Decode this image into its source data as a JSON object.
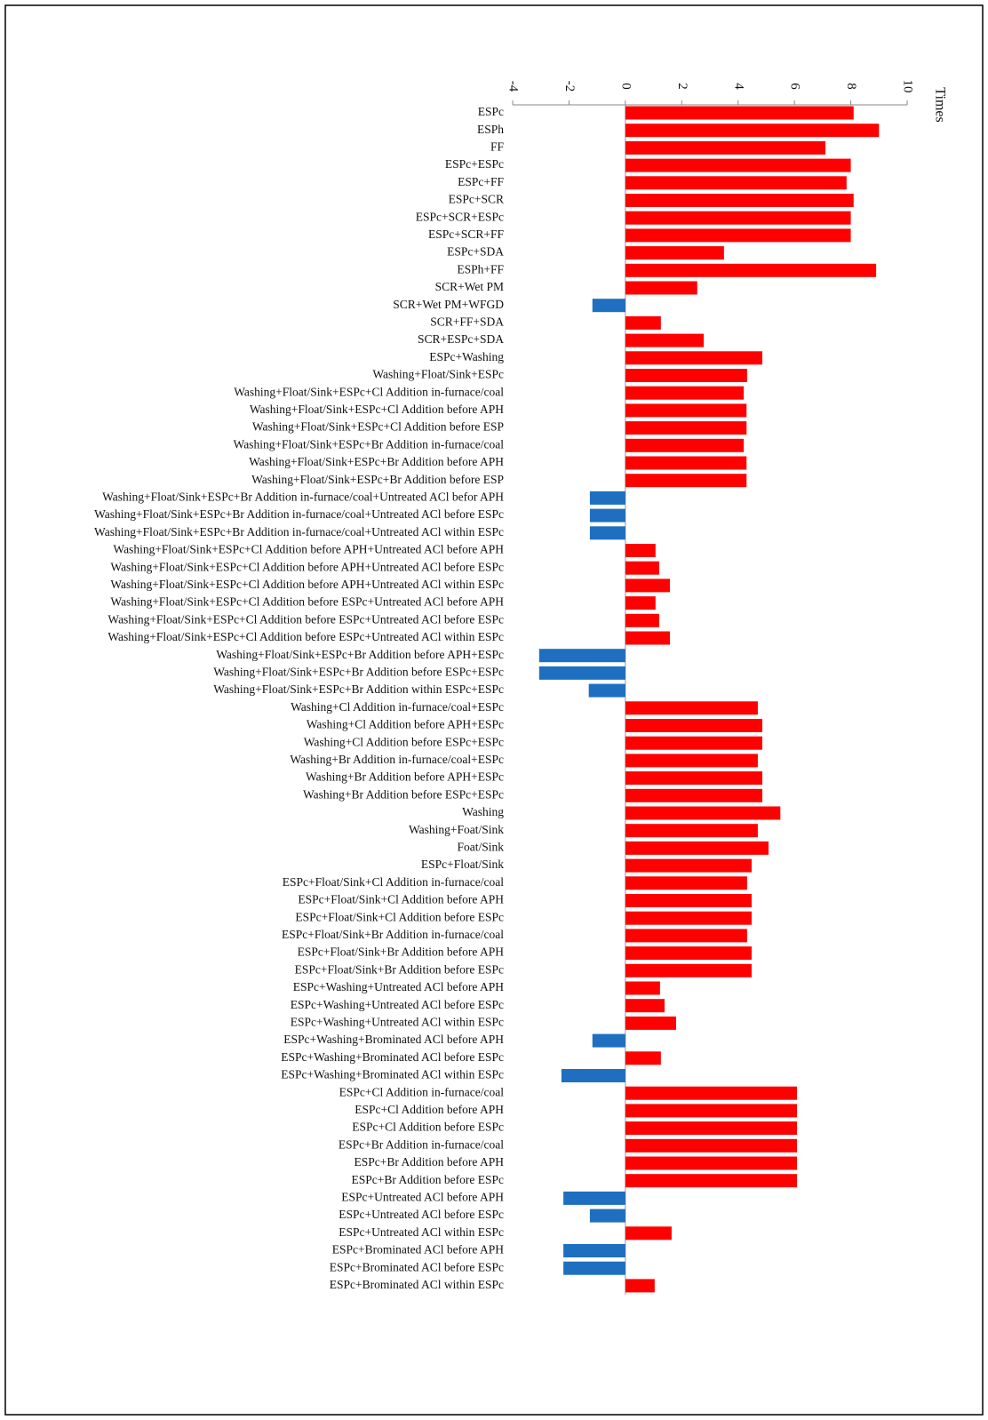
{
  "chart_data": {
    "type": "hbar",
    "x_label": "Times",
    "xlim": [
      -4,
      10
    ],
    "xticks": [
      -4,
      -2,
      0,
      2,
      4,
      6,
      8,
      10
    ],
    "color_positive": "#ff0000",
    "color_negative": "#1f6fc0",
    "categories": [
      "ESPc",
      "ESPh",
      "FF",
      "ESPc+ESPc",
      "ESPc+FF",
      "ESPc+SCR",
      "ESPc+SCR+ESPc",
      "ESPc+SCR+FF",
      "ESPc+SDA",
      "ESPh+FF",
      "SCR+Wet PM",
      "SCR+Wet PM+WFGD",
      "SCR+FF+SDA",
      "SCR+ESPc+SDA",
      "ESPc+Washing",
      "Washing+Float/Sink+ESPc",
      "Washing+Float/Sink+ESPc+Cl Addition in-furnace/coal",
      "Washing+Float/Sink+ESPc+Cl Addition before APH",
      "Washing+Float/Sink+ESPc+Cl Addition before ESP",
      "Washing+Float/Sink+ESPc+Br Addition in-furnace/coal",
      "Washing+Float/Sink+ESPc+Br Addition before APH",
      "Washing+Float/Sink+ESPc+Br Addition before ESP",
      "Washing+Float/Sink+ESPc+Br Addition in-furnace/coal+Untreated ACl befor APH",
      "Washing+Float/Sink+ESPc+Br Addition in-furnace/coal+Untreated ACl before ESPc",
      "Washing+Float/Sink+ESPc+Br Addition in-furnace/coal+Untreated ACl within ESPc",
      "Washing+Float/Sink+ESPc+Cl Addition before APH+Untreated ACl before APH",
      "Washing+Float/Sink+ESPc+Cl Addition before APH+Untreated ACl before ESPc",
      "Washing+Float/Sink+ESPc+Cl Addition before APH+Untreated ACl within ESPc",
      "Washing+Float/Sink+ESPc+Cl Addition before ESPc+Untreated ACl before APH",
      "Washing+Float/Sink+ESPc+Cl Addition before ESPc+Untreated ACl before ESPc",
      "Washing+Float/Sink+ESPc+Cl Addition before ESPc+Untreated ACl within ESPc",
      "Washing+Float/Sink+ESPc+Br Addition before APH+ESPc",
      "Washing+Float/Sink+ESPc+Br Addition before ESPc+ESPc",
      "Washing+Float/Sink+ESPc+Br Addition within ESPc+ESPc",
      "Washing+Cl Addition in-furnace/coal+ESPc",
      "Washing+Cl Addition before APH+ESPc",
      "Washing+Cl Addition before ESPc+ESPc",
      "Washing+Br Addition in-furnace/coal+ESPc",
      "Washing+Br Addition before APH+ESPc",
      "Washing+Br Addition before ESPc+ESPc",
      "Washing",
      "Washing+Foat/Sink",
      "Foat/Sink",
      "ESPc+Float/Sink",
      "ESPc+Float/Sink+Cl Addition in-furnace/coal",
      "ESPc+Float/Sink+Cl Addition before APH",
      "ESPc+Float/Sink+Cl Addition before ESPc",
      "ESPc+Float/Sink+Br Addition in-furnace/coal",
      "ESPc+Float/Sink+Br Addition before APH",
      "ESPc+Float/Sink+Br Addition before ESPc",
      "ESPc+Washing+Untreated ACl before APH",
      "ESPc+Washing+Untreated ACl before ESPc",
      "ESPc+Washing+Untreated ACl within ESPc",
      "ESPc+Washing+Brominated ACl before APH",
      "ESPc+Washing+Brominated ACl before ESPc",
      "ESPc+Washing+Brominated ACl within ESPc",
      "ESPc+Cl Addition in-furnace/coal",
      "ESPc+Cl Addition before APH",
      "ESPc+Cl Addition before ESPc",
      "ESPc+Br Addition in-furnace/coal",
      "ESPc+Br Addition before APH",
      "ESPc+Br Addition before ESPc",
      "ESPc+Untreated ACl before APH",
      "ESPc+Untreated ACl before ESPc",
      "ESPc+Untreated ACl within ESPc",
      "ESPc+Brominated ACl before APH",
      "ESPc+Brominated ACl before ESPc",
      "ESPc+Brominated ACl within ESPc"
    ],
    "values": [
      8.1,
      9.0,
      7.1,
      8.0,
      7.85,
      8.1,
      8.0,
      8.0,
      3.5,
      8.9,
      2.55,
      -1.17,
      1.26,
      2.78,
      4.86,
      4.32,
      4.2,
      4.3,
      4.3,
      4.2,
      4.3,
      4.3,
      -1.26,
      -1.26,
      -1.26,
      1.07,
      1.2,
      1.58,
      1.07,
      1.2,
      1.58,
      -3.06,
      -3.06,
      -1.3,
      4.7,
      4.86,
      4.86,
      4.7,
      4.86,
      4.86,
      5.5,
      4.7,
      5.08,
      4.48,
      4.32,
      4.48,
      4.48,
      4.32,
      4.48,
      4.48,
      1.23,
      1.39,
      1.8,
      -1.17,
      1.26,
      -2.27,
      6.09,
      6.09,
      6.09,
      6.09,
      6.09,
      6.09,
      -2.2,
      -1.26,
      1.64,
      -2.2,
      -2.2,
      1.04
    ]
  }
}
